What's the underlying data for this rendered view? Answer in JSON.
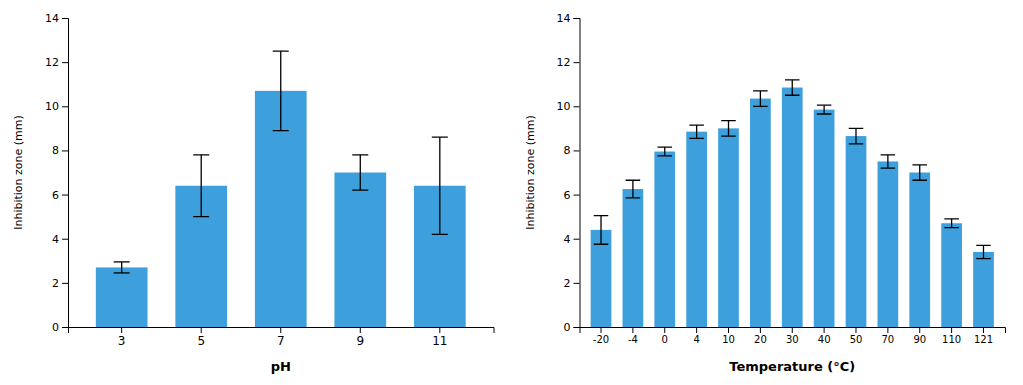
{
  "chart_data": [
    {
      "type": "bar",
      "categories": [
        "3",
        "5",
        "7",
        "9",
        "11"
      ],
      "values": [
        2.7,
        6.4,
        10.7,
        7.0,
        6.4
      ],
      "errors": [
        0.25,
        1.4,
        1.8,
        0.8,
        2.2
      ],
      "xlabel": "pH",
      "ylabel": "Inhibition zone (mm)",
      "ylim": [
        0,
        14
      ],
      "yticks": [
        0,
        2,
        4,
        6,
        8,
        10,
        12,
        14
      ],
      "color": "#3d9fdb"
    },
    {
      "type": "bar",
      "categories": [
        "-20",
        "-4",
        "0",
        "4",
        "10",
        "20",
        "30",
        "40",
        "50",
        "70",
        "90",
        "110",
        "121"
      ],
      "values": [
        4.4,
        6.25,
        7.95,
        8.85,
        9.0,
        10.35,
        10.85,
        9.85,
        8.65,
        7.5,
        7.0,
        4.7,
        3.4
      ],
      "errors": [
        0.65,
        0.4,
        0.2,
        0.3,
        0.35,
        0.35,
        0.35,
        0.2,
        0.35,
        0.3,
        0.35,
        0.2,
        0.3
      ],
      "xlabel": "Temperature (°C)",
      "ylabel": "Inhibition zone (mm)",
      "ylim": [
        0,
        14
      ],
      "yticks": [
        0,
        2,
        4,
        6,
        8,
        10,
        12,
        14
      ],
      "color": "#3d9fdb"
    }
  ]
}
